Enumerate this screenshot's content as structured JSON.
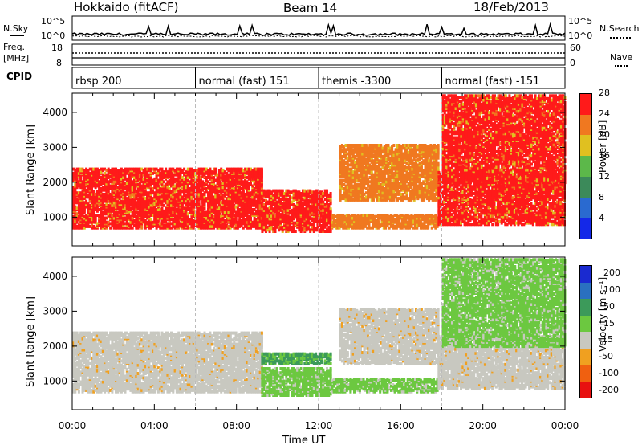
{
  "header": {
    "station": "Hokkaido (fitACF)",
    "beam": "Beam 14",
    "date": "18/Feb/2013"
  },
  "noise_panel": {
    "left_label": "N.Sky",
    "right_label": "N.Search",
    "left_ticks": [
      "10^5",
      "10^0"
    ],
    "right_ticks": [
      "10^5",
      "10^0"
    ]
  },
  "freq_panel": {
    "left_label_1": "Freq.",
    "left_label_2": "[MHz]",
    "left_ticks": [
      "18",
      "8"
    ],
    "right_ticks": [
      "60",
      "0"
    ],
    "right_label": "Nave"
  },
  "cpid": {
    "label": "CPID",
    "segments": [
      {
        "name": "rbsp 200",
        "start_hour": 0
      },
      {
        "name": "normal (fast) 151",
        "start_hour": 6
      },
      {
        "name": "themis -3300",
        "start_hour": 12
      },
      {
        "name": "normal (fast) -151",
        "start_hour": 18
      }
    ]
  },
  "time_axis": {
    "label": "Time UT",
    "ticks": [
      "00:00",
      "04:00",
      "08:00",
      "12:00",
      "16:00",
      "20:00",
      "00:00"
    ]
  },
  "chart_data": [
    {
      "type": "heatmap",
      "name": "power",
      "ylabel": "Slant Range [km]",
      "yticks": [
        1000,
        2000,
        3000,
        4000
      ],
      "ylim": [
        180,
        4550
      ],
      "xlim_hours": [
        0,
        24
      ],
      "colorbar_label": "Power [dB]",
      "colorbar_ticks": [
        4,
        8,
        12,
        16,
        20,
        24,
        28
      ],
      "colorbar_colors": [
        "#1428e8",
        "#2a6ad0",
        "#3c8a5a",
        "#5cb84a",
        "#e0c020",
        "#f07820",
        "#ff1a1a"
      ],
      "regions": [
        {
          "t0": 0.0,
          "t1": 9.2,
          "r0": 700,
          "r1": 2400,
          "level": 28
        },
        {
          "t0": 9.2,
          "t1": 12.6,
          "r0": 600,
          "r1": 1800,
          "level": 28
        },
        {
          "t0": 12.6,
          "t1": 17.8,
          "r0": 700,
          "r1": 1100,
          "level": 24
        },
        {
          "t0": 13.0,
          "t1": 17.8,
          "r0": 1500,
          "r1": 3100,
          "level": 24
        },
        {
          "t0": 17.8,
          "t1": 24.0,
          "r0": 800,
          "r1": 2300,
          "level": 28
        },
        {
          "t0": 18.0,
          "t1": 24.0,
          "r0": 2000,
          "r1": 4500,
          "level": 26
        }
      ]
    },
    {
      "type": "heatmap",
      "name": "velocity",
      "ylabel": "Slant Range [km]",
      "yticks": [
        1000,
        2000,
        3000,
        4000
      ],
      "ylim": [
        180,
        4550
      ],
      "xlim_hours": [
        0,
        24
      ],
      "colorbar_label": "Velocity [m s⁻¹]",
      "colorbar_ticks": [
        200,
        100,
        50,
        15,
        -15,
        -50,
        -100,
        -200
      ],
      "colorbar_colors": [
        "#1a2ad0",
        "#2a70c0",
        "#3c9a5a",
        "#6cc840",
        "#c8c8c0",
        "#f0a020",
        "#f06010",
        "#e81010"
      ],
      "regions": [
        {
          "t0": 0.0,
          "t1": 9.2,
          "r0": 700,
          "r1": 2400,
          "level": 0
        },
        {
          "t0": 9.2,
          "t1": 12.6,
          "r0": 1500,
          "r1": 1800,
          "level": 50
        },
        {
          "t0": 9.2,
          "t1": 12.6,
          "r0": 600,
          "r1": 1400,
          "level": 15
        },
        {
          "t0": 12.6,
          "t1": 17.8,
          "r0": 700,
          "r1": 1100,
          "level": 15
        },
        {
          "t0": 13.0,
          "t1": 17.8,
          "r0": 1500,
          "r1": 3100,
          "level": 0
        },
        {
          "t0": 17.8,
          "t1": 24.0,
          "r0": 800,
          "r1": 2300,
          "level": 0
        },
        {
          "t0": 18.0,
          "t1": 24.0,
          "r0": 2000,
          "r1": 4500,
          "level": 15
        }
      ]
    }
  ],
  "colors": {
    "axis": "#000000",
    "divider": "#bbbbbb"
  }
}
